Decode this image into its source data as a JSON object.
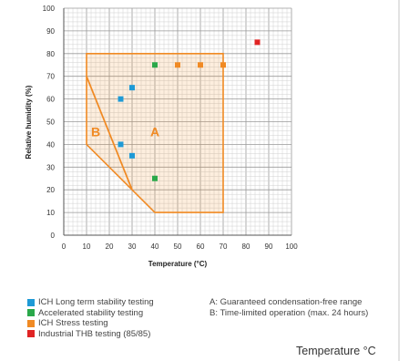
{
  "chart_data": {
    "type": "scatter",
    "xlabel": "Temperature (°C)",
    "ylabel": "Relative humidity (%)",
    "xlim": [
      0,
      100
    ],
    "ylim": [
      0,
      100
    ],
    "x_ticks": [
      0,
      10,
      20,
      30,
      40,
      50,
      60,
      70,
      80,
      90,
      100
    ],
    "y_ticks": [
      0,
      10,
      20,
      30,
      40,
      50,
      60,
      70,
      80,
      90,
      100
    ],
    "grid": true,
    "series": [
      {
        "name": "ICH Long term stability testing",
        "color": "#1e9ad6",
        "points": [
          [
            25,
            60
          ],
          [
            30,
            65
          ],
          [
            25,
            40
          ],
          [
            30,
            35
          ]
        ]
      },
      {
        "name": "Accelerated stability testing",
        "color": "#2aa84a",
        "points": [
          [
            40,
            75
          ],
          [
            40,
            25
          ]
        ]
      },
      {
        "name": "ICH Stress testing",
        "color": "#f08a24",
        "points": [
          [
            50,
            75
          ],
          [
            60,
            75
          ],
          [
            70,
            75
          ]
        ]
      },
      {
        "name": "Industrial THB testing (85/85)",
        "color": "#e02424",
        "points": [
          [
            85,
            85
          ]
        ]
      }
    ],
    "regions": [
      {
        "label": "A",
        "polygon": [
          [
            10,
            80
          ],
          [
            70,
            80
          ],
          [
            70,
            10
          ],
          [
            40,
            10
          ],
          [
            30,
            20
          ],
          [
            10,
            70
          ]
        ],
        "label_at": [
          40,
          45
        ]
      },
      {
        "label": "B",
        "polygon": [
          [
            10,
            70
          ],
          [
            30,
            20
          ],
          [
            10,
            40
          ]
        ],
        "label_at": [
          14,
          45
        ]
      }
    ],
    "region_color": "#f08a24",
    "notes": [
      "A: Guaranteed condensation-free range",
      "B: Time-limited operation (max. 24 hours)"
    ]
  },
  "caption": "Temperature °C"
}
